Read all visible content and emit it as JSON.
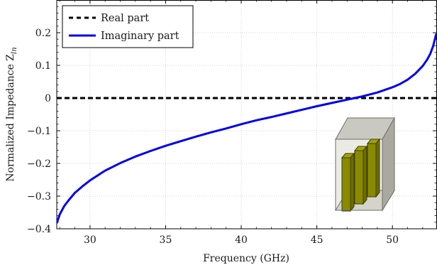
{
  "chart_data": {
    "type": "line",
    "xlabel": "Frequency (GHz)",
    "ylabel": "Normalized Impedance Z",
    "ylabel_subscript": "ln",
    "xlim": [
      27.8,
      52.9
    ],
    "ylim": [
      -0.4,
      0.3
    ],
    "xticks": [
      30,
      35,
      40,
      45,
      50
    ],
    "yticks": [
      -0.4,
      -0.3,
      -0.2,
      -0.1,
      0,
      0.1,
      0.2
    ],
    "ytick_labels": [
      "−0.4",
      "−0.3",
      "−0.2",
      "−0.1",
      "0",
      "0.1",
      "0.2"
    ],
    "grid": true,
    "legend_position": "top-left",
    "series": [
      {
        "name": "Real part",
        "style": "dashed",
        "color": "#000000",
        "x": [
          27.8,
          52.9
        ],
        "y": [
          0,
          0
        ]
      },
      {
        "name": "Imaginary part",
        "style": "solid",
        "color": "#0000ee",
        "x": [
          27.8,
          28.0,
          28.3,
          28.6,
          29.0,
          29.5,
          30.0,
          31.0,
          32.0,
          33.0,
          34.0,
          35.0,
          36.0,
          37.0,
          38.0,
          39.0,
          40.0,
          41.0,
          42.0,
          43.0,
          44.0,
          45.0,
          46.0,
          47.0,
          47.5,
          48.0,
          49.0,
          50.0,
          50.5,
          51.0,
          51.5,
          52.0,
          52.3,
          52.5,
          52.7,
          52.9
        ],
        "y": [
          -0.383,
          -0.356,
          -0.33,
          -0.312,
          -0.29,
          -0.27,
          -0.252,
          -0.222,
          -0.199,
          -0.179,
          -0.162,
          -0.146,
          -0.132,
          -0.118,
          -0.105,
          -0.093,
          -0.08,
          -0.068,
          -0.058,
          -0.047,
          -0.036,
          -0.025,
          -0.015,
          -0.005,
          0.0,
          0.005,
          0.017,
          0.033,
          0.043,
          0.056,
          0.074,
          0.098,
          0.118,
          0.135,
          0.16,
          0.197
        ]
      }
    ]
  },
  "inset": {
    "icon": "waveguide-3d-model-icon",
    "box_color": "#c8c8c0",
    "post_color": "#8a8a00"
  }
}
